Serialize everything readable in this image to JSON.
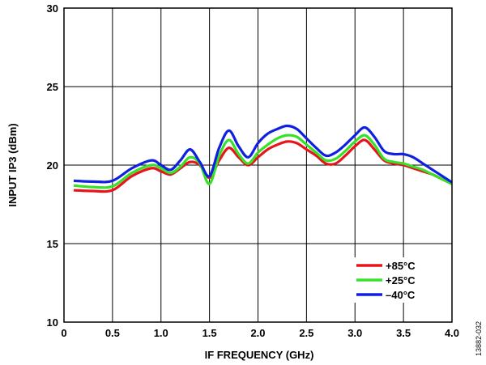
{
  "figure_id": "13882-032",
  "colors": {
    "red": "#e8141b",
    "green": "#38e02a",
    "blue": "#1020e0",
    "grid": "#000000"
  },
  "chart_data": {
    "type": "line",
    "xlabel": "IF FREQUENCY (GHz)",
    "ylabel": "INPUT IP3 (dBm)",
    "xlim": [
      0,
      4.0
    ],
    "ylim": [
      10,
      30
    ],
    "xticks": [
      "0",
      "0.5",
      "1.0",
      "1.5",
      "2.0",
      "2.5",
      "3.0",
      "3.5",
      "4.0"
    ],
    "yticks": [
      "10",
      "15",
      "20",
      "25",
      "30"
    ],
    "grid": true,
    "legend_position": "bottom-right",
    "series": [
      {
        "name": "+85°C",
        "color": "#e8141b",
        "x": [
          0.1,
          0.3,
          0.5,
          0.7,
          0.9,
          1.0,
          1.1,
          1.2,
          1.3,
          1.4,
          1.5,
          1.6,
          1.7,
          1.8,
          1.9,
          2.0,
          2.1,
          2.2,
          2.3,
          2.4,
          2.5,
          2.6,
          2.7,
          2.8,
          2.9,
          3.0,
          3.1,
          3.2,
          3.3,
          3.4,
          3.5,
          3.6,
          3.7,
          3.8,
          3.9,
          4.0
        ],
        "y": [
          18.4,
          18.35,
          18.4,
          19.3,
          19.8,
          19.6,
          19.4,
          19.8,
          20.2,
          20.0,
          19.2,
          20.3,
          21.1,
          20.5,
          20.0,
          20.5,
          21.0,
          21.3,
          21.5,
          21.4,
          21.0,
          20.6,
          20.1,
          20.1,
          20.6,
          21.2,
          21.6,
          21.0,
          20.3,
          20.1,
          20.0,
          19.8,
          19.6,
          19.4,
          19.1,
          18.8
        ]
      },
      {
        "name": "+25°C",
        "color": "#38e02a",
        "x": [
          0.1,
          0.3,
          0.5,
          0.7,
          0.9,
          1.0,
          1.1,
          1.2,
          1.3,
          1.4,
          1.5,
          1.6,
          1.7,
          1.8,
          1.9,
          2.0,
          2.1,
          2.2,
          2.3,
          2.4,
          2.5,
          2.6,
          2.7,
          2.8,
          2.9,
          3.0,
          3.1,
          3.2,
          3.3,
          3.4,
          3.5,
          3.6,
          3.7,
          3.8,
          3.9,
          4.0
        ],
        "y": [
          18.7,
          18.6,
          18.65,
          19.5,
          20.0,
          19.8,
          19.5,
          19.9,
          20.5,
          20.1,
          18.8,
          20.6,
          21.6,
          20.7,
          20.1,
          20.8,
          21.3,
          21.7,
          21.9,
          21.8,
          21.3,
          20.8,
          20.3,
          20.4,
          20.9,
          21.5,
          21.9,
          21.3,
          20.4,
          20.2,
          20.1,
          19.9,
          19.7,
          19.4,
          19.1,
          18.8
        ]
      },
      {
        "name": "–40°C",
        "color": "#1020e0",
        "x": [
          0.1,
          0.3,
          0.5,
          0.7,
          0.9,
          1.0,
          1.1,
          1.2,
          1.3,
          1.4,
          1.5,
          1.6,
          1.7,
          1.8,
          1.9,
          2.0,
          2.1,
          2.2,
          2.3,
          2.4,
          2.5,
          2.6,
          2.7,
          2.8,
          2.9,
          3.0,
          3.1,
          3.2,
          3.3,
          3.4,
          3.5,
          3.6,
          3.7,
          3.8,
          3.9,
          4.0
        ],
        "y": [
          19.0,
          18.95,
          19.0,
          19.8,
          20.3,
          20.0,
          19.7,
          20.3,
          21.0,
          20.2,
          19.3,
          21.1,
          22.2,
          21.2,
          20.5,
          21.4,
          22.0,
          22.3,
          22.5,
          22.3,
          21.7,
          21.1,
          20.6,
          20.8,
          21.3,
          21.9,
          22.4,
          21.8,
          20.9,
          20.7,
          20.7,
          20.5,
          20.1,
          19.7,
          19.3,
          18.9
        ]
      }
    ]
  }
}
